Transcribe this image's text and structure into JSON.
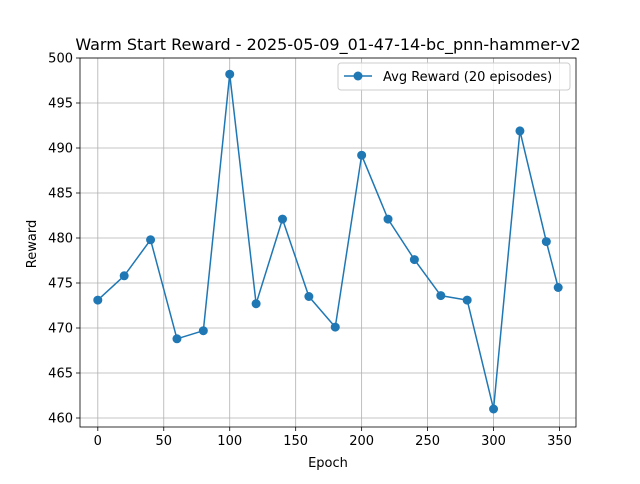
{
  "chart_data": {
    "type": "line",
    "title": "Warm Start Reward - 2025-05-09_01-47-14-bc_pnn-hammer-v2",
    "xlabel": "Epoch",
    "ylabel": "Reward",
    "xlim": [
      -13.5,
      362.5
    ],
    "ylim": [
      459.0,
      500.0
    ],
    "xticks": [
      0,
      50,
      100,
      150,
      200,
      250,
      300,
      350
    ],
    "yticks": [
      460,
      465,
      470,
      475,
      480,
      485,
      490,
      495,
      500
    ],
    "grid": true,
    "legend_position": "top-right",
    "series": [
      {
        "name": "Avg Reward (20 episodes)",
        "color": "#1f77b4",
        "marker": "circle",
        "x": [
          0,
          20,
          40,
          60,
          80,
          100,
          120,
          140,
          160,
          180,
          200,
          220,
          240,
          260,
          280,
          300,
          320,
          340,
          349
        ],
        "y": [
          473.1,
          475.8,
          479.8,
          468.8,
          469.7,
          498.2,
          472.7,
          482.1,
          473.5,
          470.1,
          489.2,
          482.1,
          477.6,
          473.6,
          473.1,
          461.0,
          491.9,
          479.6,
          474.5
        ]
      }
    ]
  }
}
